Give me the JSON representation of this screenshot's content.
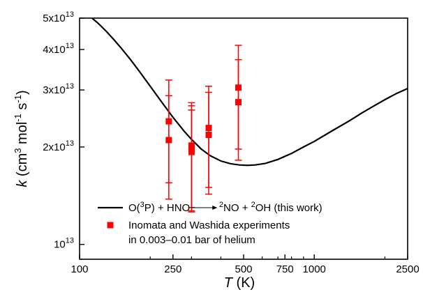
{
  "chart_data": {
    "type": "scatter",
    "x_scale": "log",
    "y_scale": "log",
    "xlim": [
      100,
      2500
    ],
    "ylim": [
      9000000000000.0,
      50000000000000.0
    ],
    "x_ticks": [
      {
        "value": 100,
        "label": "100"
      },
      {
        "value": 250,
        "label": "250"
      },
      {
        "value": 500,
        "label": "500"
      },
      {
        "value": 750,
        "label": "750"
      },
      {
        "value": 1000,
        "label": "1000"
      },
      {
        "value": 2500,
        "label": "2500"
      }
    ],
    "y_ticks": [
      {
        "value": 10000000000000.0,
        "mant": "10",
        "exp": "13"
      },
      {
        "value": 20000000000000.0,
        "mant": "2x10",
        "exp": "13"
      },
      {
        "value": 30000000000000.0,
        "mant": "3x10",
        "exp": "13"
      },
      {
        "value": 40000000000000.0,
        "mant": "4x10",
        "exp": "13"
      },
      {
        "value": 50000000000000.0,
        "mant": "5x10",
        "exp": "13"
      }
    ],
    "xlabel": {
      "italic": "T",
      "rest": " (K)"
    },
    "ylabel": {
      "italic": "k",
      "p1": " (cm",
      "s1": "3",
      "p2": " mol",
      "s2": "-1",
      "p3": " s",
      "s3": "-1",
      "p4": ")"
    },
    "grid": false,
    "legend_position": "bottom-center",
    "series": [
      {
        "name_parts": [
          "O(",
          "3",
          "P) + HNO ",
          "2",
          "NO + ",
          "2",
          "OH (this work)"
        ],
        "style": "line",
        "color": "#000000",
        "x": [
          113,
          120,
          130,
          140,
          150,
          165,
          180,
          200,
          220,
          250,
          280,
          300,
          330,
          360,
          400,
          440,
          480,
          520,
          560,
          620,
          700,
          800,
          900,
          1000,
          1200,
          1400,
          1600,
          1800,
          2000,
          2250,
          2500
        ],
        "y": [
          50000000000000.0,
          48200000000000.0,
          45500000000000.0,
          42900000000000.0,
          40500000000000.0,
          37200000000000.0,
          34200000000000.0,
          30800000000000.0,
          28000000000000.0,
          24700000000000.0,
          22300000000000.0,
          21100000000000.0,
          19700000000000.0,
          18800000000000.0,
          18100000000000.0,
          17750000000000.0,
          17600000000000.0,
          17550000000000.0,
          17600000000000.0,
          17800000000000.0,
          18300000000000.0,
          19100000000000.0,
          20000000000000.0,
          20800000000000.0,
          22500000000000.0,
          24000000000000.0,
          25500000000000.0,
          26800000000000.0,
          28000000000000.0,
          29300000000000.0,
          30300000000000.0
        ]
      },
      {
        "name_lines": [
          "Inomata and Washida experiments",
          "in 0.003–0.01 bar of helium"
        ],
        "style": "markers",
        "color": "#ff0000",
        "points": [
          {
            "x": 240,
            "y": 21000000000000.0,
            "ylow": 13800000000000.0,
            "yhigh": 28800000000000.0
          },
          {
            "x": 240,
            "y": 24000000000000.0,
            "ylow": 15500000000000.0,
            "yhigh": 32200000000000.0
          },
          {
            "x": 300,
            "y": 19300000000000.0,
            "ylow": 12600000000000.0,
            "yhigh": 26000000000000.0
          },
          {
            "x": 300,
            "y": 19800000000000.0,
            "ylow": 13000000000000.0,
            "yhigh": 26800000000000.0
          },
          {
            "x": 300,
            "y": 20200000000000.0,
            "ylow": 12700000000000.0,
            "yhigh": 27400000000000.0
          },
          {
            "x": 355,
            "y": 21800000000000.0,
            "ylow": 14300000000000.0,
            "yhigh": 29500000000000.0
          },
          {
            "x": 355,
            "y": 22900000000000.0,
            "ylow": 15000000000000.0,
            "yhigh": 30800000000000.0
          },
          {
            "x": 475,
            "y": 27500000000000.0,
            "ylow": 18200000000000.0,
            "yhigh": 37200000000000.0
          },
          {
            "x": 475,
            "y": 30500000000000.0,
            "ylow": 19700000000000.0,
            "yhigh": 41200000000000.0
          }
        ]
      }
    ]
  }
}
